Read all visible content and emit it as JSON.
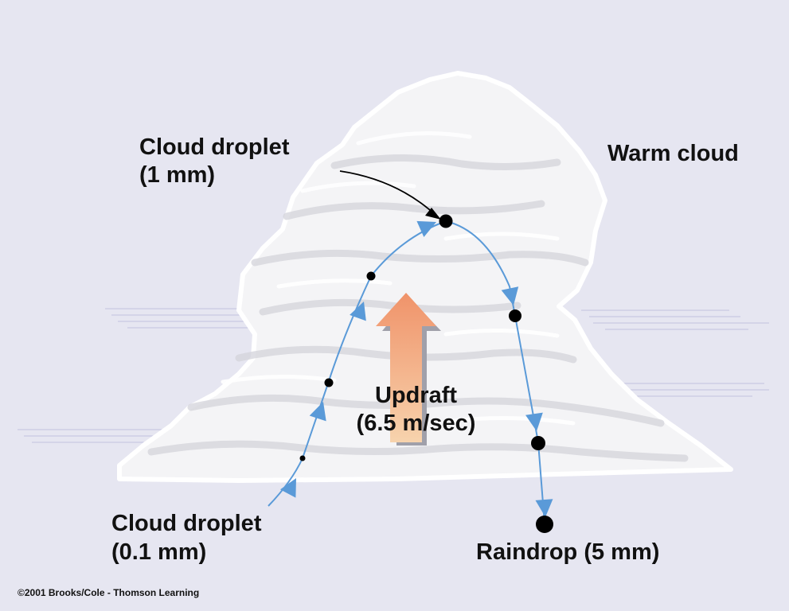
{
  "labels": {
    "cloud_type": "Warm cloud",
    "top_droplet_line1": "Cloud droplet",
    "top_droplet_line2": "(1 mm)",
    "bottom_droplet_line1": "Cloud droplet",
    "bottom_droplet_line2": "(0.1 mm)",
    "updraft_line1": "Updraft",
    "updraft_line2": "(6.5 m/sec)",
    "raindrop": "Raindrop (5 mm)"
  },
  "copyright": "©2001 Brooks/Cole - Thomson Learning",
  "colors": {
    "background": "#e6e6f1",
    "cloud": "#f4f4f6",
    "cloud_shadow": "#d4d4db",
    "path_arrow": "#5a9ad8",
    "updraft_top": "#f0936a",
    "updraft_bottom": "#f7d3ad",
    "droplet": "#000000"
  }
}
